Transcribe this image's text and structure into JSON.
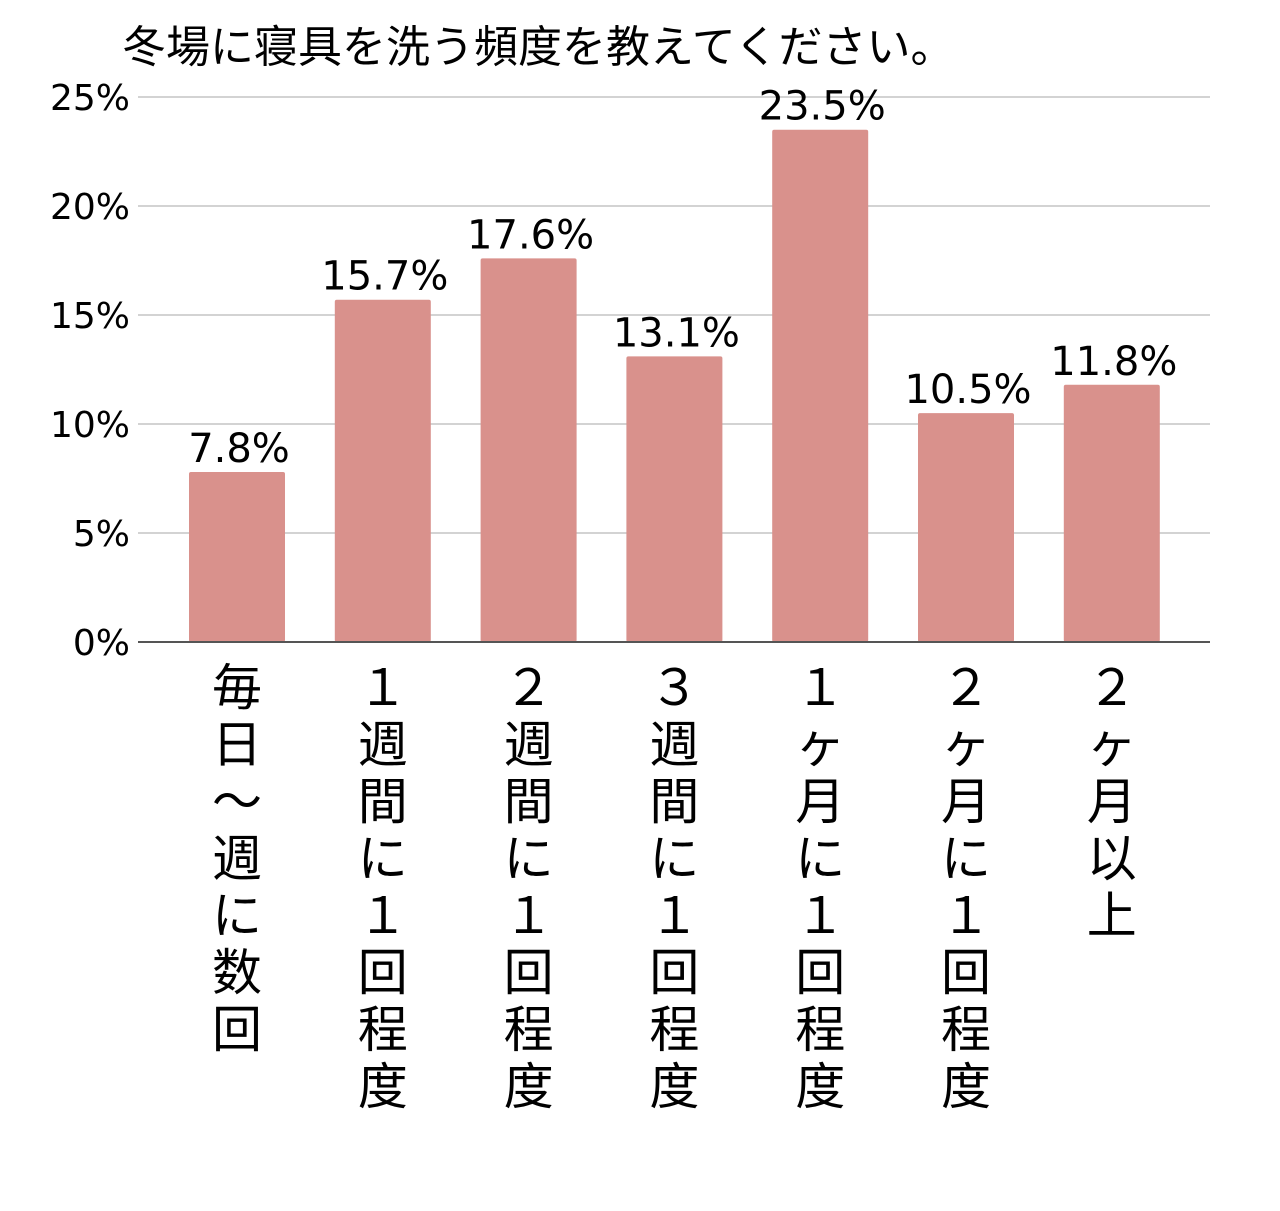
{
  "chart_data": {
    "type": "bar",
    "title": "冬場に寝具を洗う頻度を教えてください。",
    "xlabel": "",
    "ylabel": "",
    "categories": [
      "毎日〜週に数回",
      "１週間に１回程度",
      "２週間に１回程度",
      "３週間に１回程度",
      "１ヶ月に１回程度",
      "２ヶ月に１回程度",
      "２ヶ月以上"
    ],
    "values": [
      7.8,
      15.7,
      17.6,
      13.1,
      23.5,
      10.5,
      11.8
    ],
    "value_labels": [
      "7.8%",
      "15.7%",
      "17.6%",
      "13.1%",
      "23.5%",
      "10.5%",
      "11.8%"
    ],
    "ylim": [
      0,
      25
    ],
    "yticks": [
      0,
      5,
      10,
      15,
      20,
      25
    ],
    "ytick_labels": [
      "0%",
      "5%",
      "10%",
      "15%",
      "20%",
      "25%"
    ],
    "grid": true,
    "legend": "none",
    "colors": {
      "bar": "#d9918c",
      "grid": "#d3d3d3",
      "axis": "#555555"
    }
  }
}
